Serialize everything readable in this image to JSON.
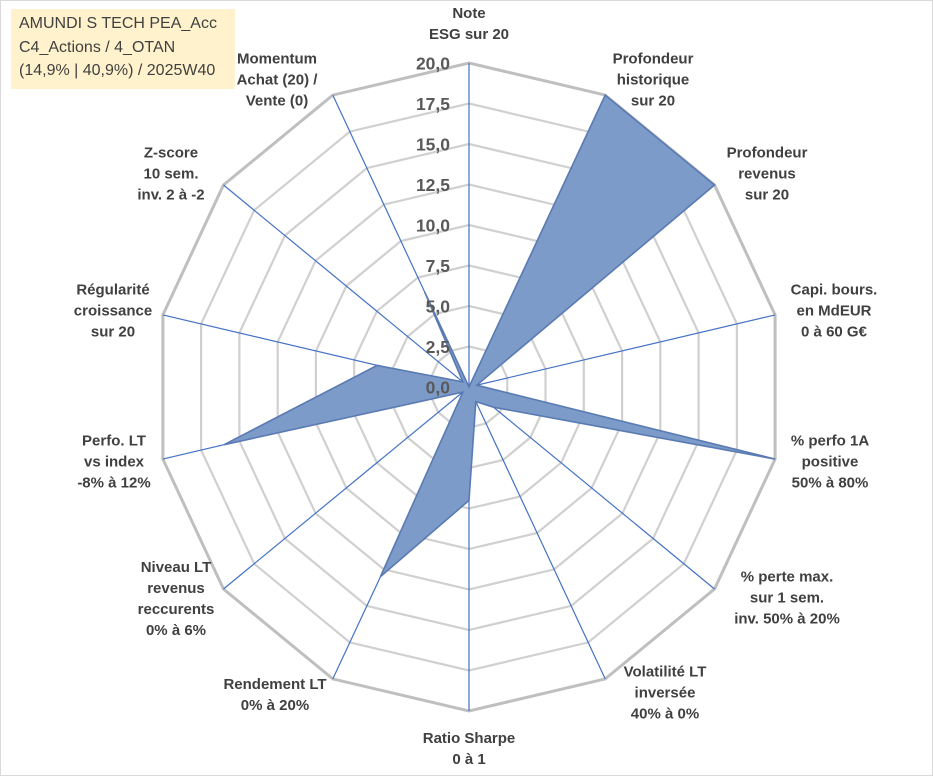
{
  "info_box": {
    "lines": [
      "AMUNDI S TECH PEA_Acc",
      "C4_Actions / 4_OTAN",
      "(14,9% | 40,9%) / 2025W40"
    ],
    "background": "#FFF2CC"
  },
  "chart_data": {
    "type": "radar",
    "categories": [
      "Note\nESG sur 20",
      "Profondeur\nhistorique\nsur 20",
      "Profondeur\nrevenus\nsur 20",
      "Capi. bours.\nen MdEUR\n0 à 60 G€",
      "% perfo 1A\npositive\n50% à 80%",
      "% perte max.\nsur 1 sem.\ninv. 50% à 20%",
      "Volatilité LT\ninversée\n40% à 0%",
      "Ratio Sharpe\n0 à 1",
      "Rendement LT\n0% à 20%",
      "Niveau LT\nrevenus\nreccurents\n0% à 6%",
      "Perfo. LT\nvs index\n-8% à 12%",
      "Régularité\ncroissance\nsur 20",
      "Z-score\n10 sem.\ninv. 2 à -2",
      "Momentum\nAchat (20) /\nVente (0)"
    ],
    "series": [
      {
        "values": [
          0,
          20,
          20,
          0.5,
          20,
          2,
          1,
          7,
          13,
          0.5,
          16,
          6,
          0.5,
          6.5
        ],
        "fill": "#7D9BC8",
        "stroke": "#5A7AB3"
      }
    ],
    "r_range": [
      0,
      20
    ],
    "r_ticks": [
      0,
      2.5,
      5,
      7.5,
      10,
      12.5,
      15,
      17.5,
      20
    ],
    "r_tick_labels": [
      "0,0",
      "2,5",
      "5,0",
      "7,5",
      "10,0",
      "12,5",
      "15,0",
      "17,5",
      "20,0"
    ],
    "grid": true,
    "legend": "none",
    "axis_color": "#4472C4",
    "grid_color": "#BFBFBF"
  }
}
